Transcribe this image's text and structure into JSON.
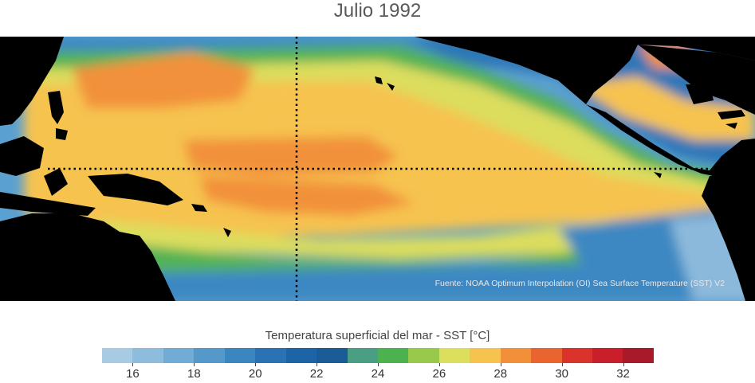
{
  "title": "Julio 1992",
  "source": "Fuente: NOAA Optimum Interpolation (OI) Sea Surface Temperature (SST) V2",
  "legend": {
    "label": "Temperatura superficial del mar - SST  [°C]",
    "colors": [
      "#a7cbe3",
      "#8dbcdd",
      "#71acd6",
      "#5599cb",
      "#3c86c0",
      "#2a72b3",
      "#1d64a6",
      "#1b5b96",
      "#4a9e84",
      "#4cb14f",
      "#98c94a",
      "#dbdf5c",
      "#f6c34f",
      "#f2903a",
      "#ea6430",
      "#d9332b",
      "#c81f2b",
      "#a8192a"
    ],
    "ticks": [
      "16",
      "18",
      "20",
      "22",
      "24",
      "26",
      "28",
      "30",
      "32"
    ]
  }
}
